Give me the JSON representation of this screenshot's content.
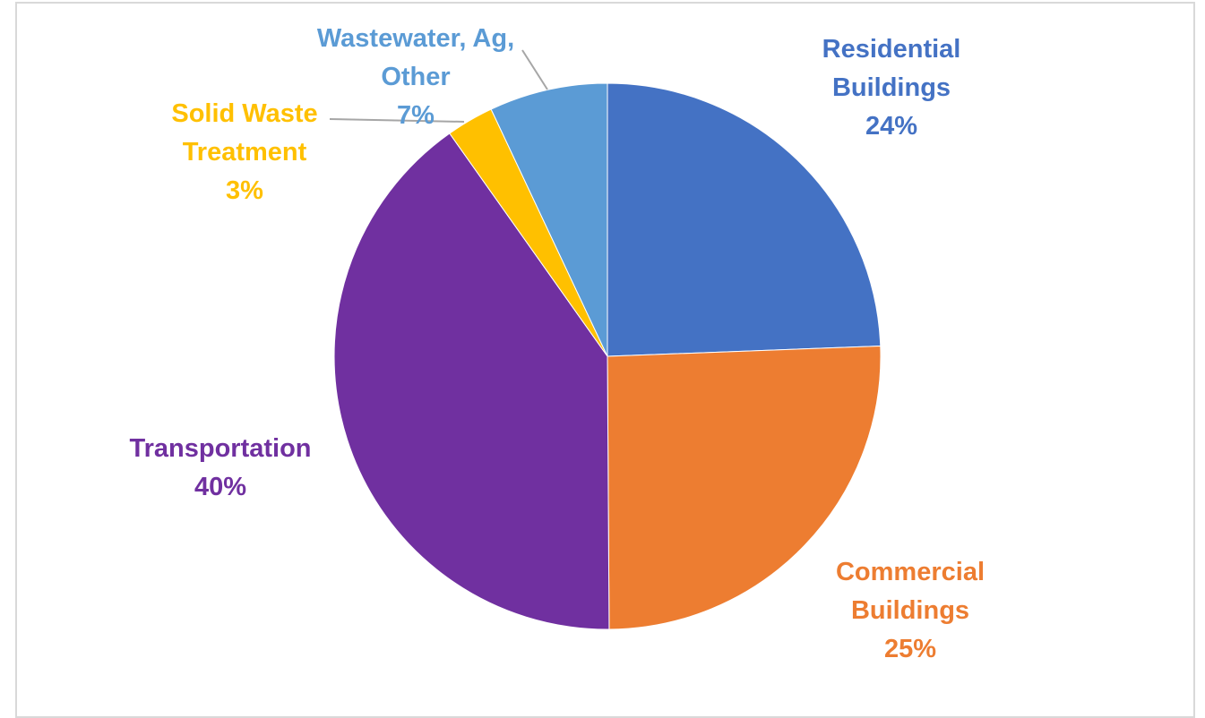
{
  "chart_data": {
    "type": "pie",
    "title": "",
    "start_angle_deg": 0,
    "direction": "clockwise",
    "slices": [
      {
        "label_lines": [
          "Residential",
          "Buildings"
        ],
        "percent_label": "24%",
        "value": 24.4,
        "color": "#4472c4"
      },
      {
        "label_lines": [
          "Commercial",
          "Buildings"
        ],
        "percent_label": "25%",
        "value": 25.5,
        "color": "#ed7d31"
      },
      {
        "label_lines": [
          "Transportation"
        ],
        "percent_label": "40%",
        "value": 40.3,
        "color": "#7030a0"
      },
      {
        "label_lines": [
          "Solid Waste",
          "Treatment"
        ],
        "percent_label": "3%",
        "value": 2.8,
        "color": "#ffc000"
      },
      {
        "label_lines": [
          "Wastewater, Ag,",
          "Other"
        ],
        "percent_label": "7%",
        "value": 7.0,
        "color": "#5b9bd5"
      }
    ]
  }
}
